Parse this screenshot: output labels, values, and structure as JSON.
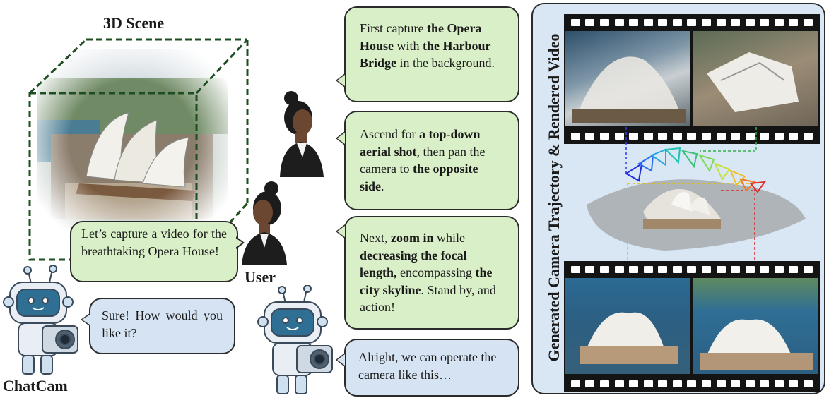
{
  "scene": {
    "title": "3D Scene"
  },
  "labels": {
    "user": "User",
    "chatcam": "ChatCam",
    "right_panel_title": "Generated Camera Trajectory & Rendered Video"
  },
  "bubbles": {
    "user_first": "Let’s capture a video for the breathtaking Opera House!",
    "bot_reply": "Sure! How would you like it?",
    "u1": {
      "t1": "First capture ",
      "b1": "the Opera House",
      "t2": " with ",
      "b2": "the Harbour Bridge",
      "t3": " in the background."
    },
    "u2": {
      "t1": "Ascend for ",
      "b1": "a top-down aerial shot",
      "t2": ", then pan the camera to ",
      "b2": "the opposite side",
      "t3": "."
    },
    "u3": {
      "t1": "Next, ",
      "b1": "zoom in",
      "t2": " while ",
      "b2": "decreasing the focal length,",
      "t3": " encompassing ",
      "b3": "the city skyline",
      "t4": ". Stand by, and action!"
    },
    "bot_final": "Alright, we can operate the camera like this…"
  },
  "colors": {
    "user_bubble": "#d9efc8",
    "bot_bubble": "#d5e3f3",
    "scene_box": "#1f4d22",
    "right_panel_bg": "#d9e6f3"
  }
}
